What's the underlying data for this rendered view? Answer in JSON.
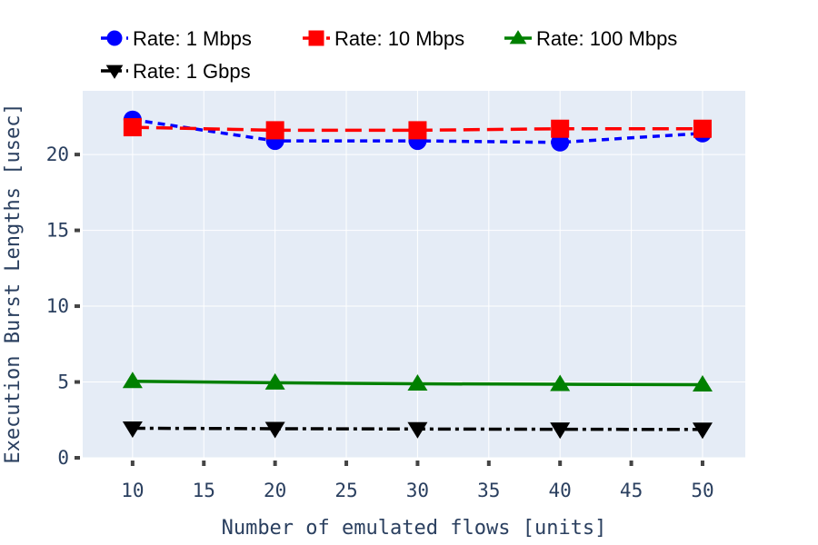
{
  "chart_data": {
    "type": "line",
    "xlabel": "Number of emulated flows [units]",
    "ylabel": "Execution Burst Lengths [usec]",
    "xlim": [
      6.5,
      53
    ],
    "ylim": [
      0,
      24.2
    ],
    "x_ticks": [
      10,
      15,
      20,
      25,
      30,
      35,
      40,
      45,
      50
    ],
    "y_ticks": [
      0,
      5,
      10,
      15,
      20
    ],
    "grid": true,
    "legend_position": "top",
    "x": [
      10,
      20,
      30,
      40,
      50
    ],
    "series": [
      {
        "name": "Rate: 1 Mbps",
        "values": [
          22.3,
          20.9,
          20.9,
          20.8,
          21.4
        ],
        "color": "#0000ff",
        "marker": "circle",
        "dash": "dash"
      },
      {
        "name": "Rate: 10 Mbps",
        "values": [
          21.8,
          21.6,
          21.6,
          21.7,
          21.7
        ],
        "color": "#ff0000",
        "marker": "square",
        "dash": "longdash"
      },
      {
        "name": "Rate: 100 Mbps",
        "values": [
          5.05,
          4.95,
          4.88,
          4.85,
          4.82
        ],
        "color": "#008000",
        "marker": "triangle-up",
        "dash": "solid"
      },
      {
        "name": "Rate: 1 Gbps",
        "values": [
          1.95,
          1.92,
          1.9,
          1.88,
          1.87
        ],
        "color": "#000000",
        "marker": "triangle-down",
        "dash": "dashdot"
      }
    ],
    "colors": {
      "plot_bg": "#e5ecf6",
      "grid": "#ffffff",
      "tick_text": "#2a3f5f"
    }
  }
}
